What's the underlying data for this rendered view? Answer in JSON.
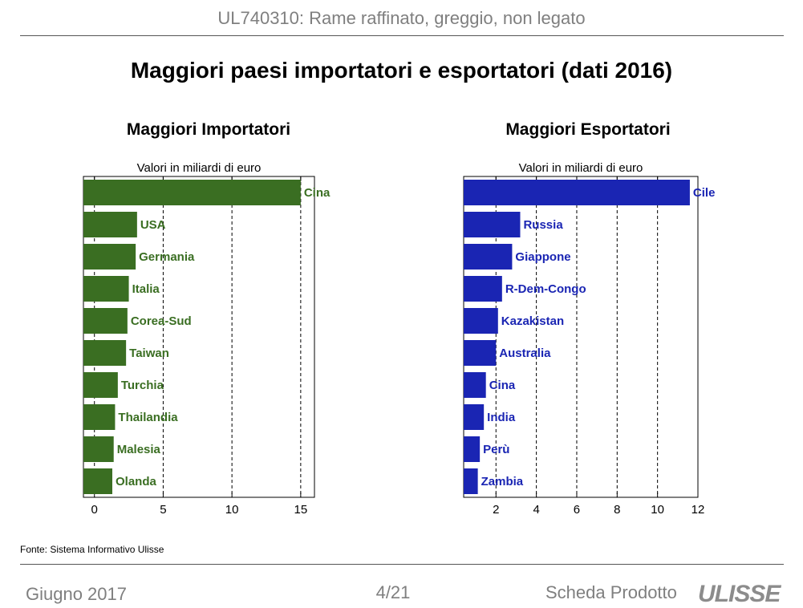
{
  "header": {
    "title": "UL740310: Rame raffinato, greggio, non legato"
  },
  "main_title": "Maggiori paesi importatori e esportatori (dati 2016)",
  "source": "Fonte: Sistema Informativo Ulisse",
  "footer": {
    "date": "Giugno 2017",
    "page": "4/21",
    "product": "Scheda Prodotto",
    "logo": "ULISSE"
  },
  "colors": {
    "importers": "#3a6e22",
    "exporters": "#1a25b3"
  },
  "chart_data": [
    {
      "type": "bar",
      "orientation": "horizontal",
      "title": "Maggiori Importatori",
      "unit": "Valori in miliardi di euro",
      "categories": [
        "Cina",
        "USA",
        "Germania",
        "Italia",
        "Corea-Sud",
        "Taiwan",
        "Turchia",
        "Thailandia",
        "Malesia",
        "Olanda"
      ],
      "values": [
        15.0,
        3.1,
        3.0,
        2.5,
        2.4,
        2.3,
        1.7,
        1.5,
        1.4,
        1.3
      ],
      "xlim": [
        -0.8,
        16
      ],
      "xticks": [
        0,
        5,
        10,
        15
      ],
      "grid": true
    },
    {
      "type": "bar",
      "orientation": "horizontal",
      "title": "Maggiori Esportatori",
      "unit": "Valori in miliardi di euro",
      "categories": [
        "Cile",
        "Russia",
        "Giappone",
        "R-Dem-Congo",
        "Kazakistan",
        "Australia",
        "Cina",
        "India",
        "Perù",
        "Zambia"
      ],
      "values": [
        11.6,
        3.2,
        2.8,
        2.3,
        2.1,
        2.0,
        1.5,
        1.4,
        1.2,
        1.1
      ],
      "xlim": [
        0.4,
        12
      ],
      "xticks": [
        2,
        4,
        6,
        8,
        10,
        12
      ],
      "grid": true
    }
  ]
}
